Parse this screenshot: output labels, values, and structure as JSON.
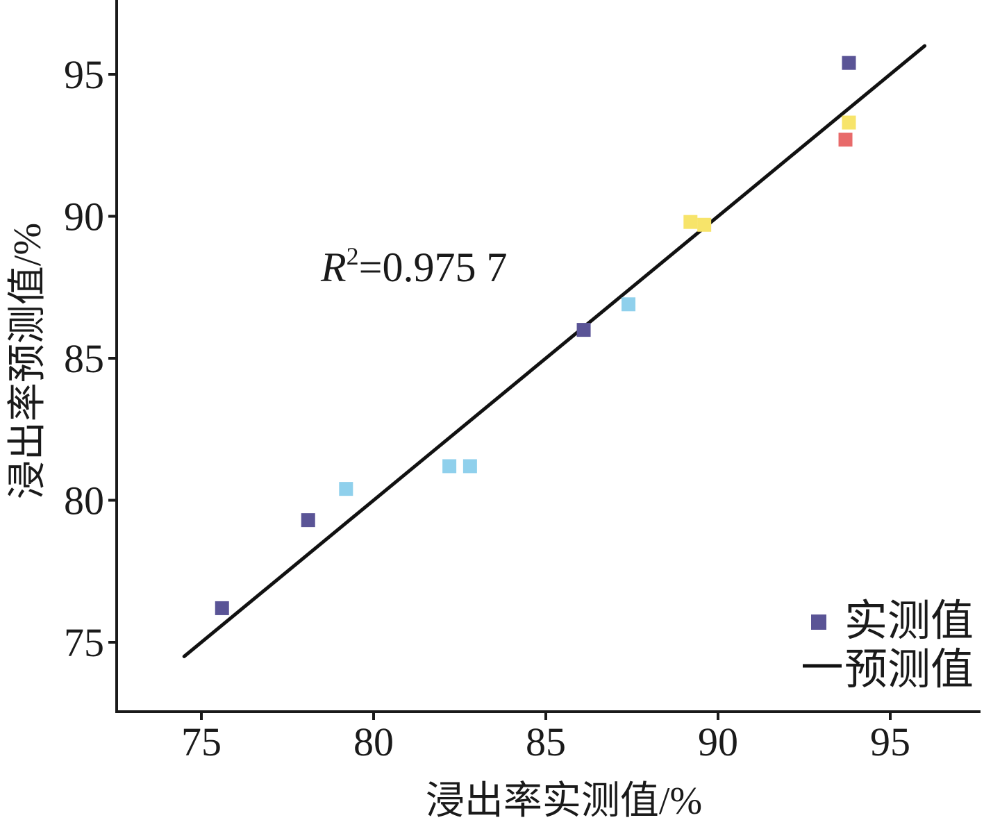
{
  "chart_data": {
    "type": "scatter",
    "xlabel": "浸出率实测值/%",
    "ylabel": "浸出率预测值/%",
    "xlim": [
      72.5,
      97.5
    ],
    "ylim": [
      72.5,
      97.5
    ],
    "x_ticks": [
      75,
      80,
      85,
      90,
      95
    ],
    "y_ticks": [
      75,
      80,
      85,
      90,
      95
    ],
    "x_tick_labels": [
      "75",
      "80",
      "85",
      "90",
      "95"
    ],
    "y_tick_labels": [
      "75",
      "80",
      "85",
      "90",
      "95"
    ],
    "grid": false,
    "annotation": {
      "r_symbol": "R",
      "superscript": "2",
      "value_text": "=0.975 7"
    },
    "legend": {
      "position": "bottom-right",
      "entries": [
        {
          "label": "实测值",
          "marker": "square",
          "color": "#5a5496"
        },
        {
          "label": "预测值",
          "marker": "line",
          "color": "#111111"
        }
      ]
    },
    "series": [
      {
        "name": "实测值",
        "marker": "square",
        "points": [
          {
            "x": 75.6,
            "y": 76.2,
            "color": "#5a5496"
          },
          {
            "x": 78.1,
            "y": 79.3,
            "color": "#5a5496"
          },
          {
            "x": 79.2,
            "y": 80.4,
            "color": "#8fd0ec"
          },
          {
            "x": 82.2,
            "y": 81.2,
            "color": "#8fd0ec"
          },
          {
            "x": 82.8,
            "y": 81.2,
            "color": "#8fd0ec"
          },
          {
            "x": 86.1,
            "y": 86.0,
            "color": "#5a5496"
          },
          {
            "x": 87.4,
            "y": 86.9,
            "color": "#8fd0ec"
          },
          {
            "x": 89.2,
            "y": 89.8,
            "color": "#f7e46a"
          },
          {
            "x": 89.6,
            "y": 89.7,
            "color": "#f7e46a"
          },
          {
            "x": 93.7,
            "y": 92.7,
            "color": "#e86a6a"
          },
          {
            "x": 93.8,
            "y": 93.3,
            "color": "#f7e46a"
          },
          {
            "x": 93.8,
            "y": 95.4,
            "color": "#5a5496"
          }
        ]
      },
      {
        "name": "预测值",
        "type": "line",
        "color": "#111111",
        "x": [
          74.5,
          96.0
        ],
        "y": [
          74.5,
          96.0
        ]
      }
    ]
  }
}
